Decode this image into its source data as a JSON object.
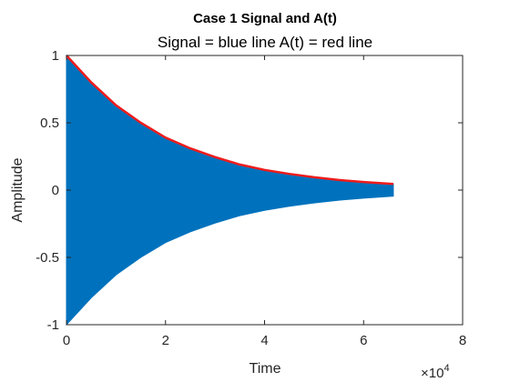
{
  "chart_data": {
    "type": "area",
    "title": "Case 1 Signal and A(t)",
    "subtitle": "Signal = blue line A(t) = red line",
    "xlabel": "Time",
    "ylabel": "Amplitude",
    "x_multiplier_label": "×10",
    "x_multiplier_exponent": "4",
    "xlim": [
      0,
      80000
    ],
    "ylim": [
      -1,
      1
    ],
    "x_ticks": [
      0,
      20000,
      40000,
      60000,
      80000
    ],
    "x_tick_labels": [
      "0",
      "2",
      "4",
      "6",
      "8"
    ],
    "y_ticks": [
      -1,
      -0.5,
      0,
      0.5,
      1
    ],
    "y_tick_labels": [
      "-1",
      "-0.5",
      "0",
      "0.5",
      "1"
    ],
    "grid": false,
    "series": [
      {
        "name": "Signal",
        "color": "#0072BD",
        "kind": "oscillating signal filling envelope ±A(t)",
        "x_end": 66000,
        "x": [
          0,
          5000,
          10000,
          15000,
          20000,
          25000,
          30000,
          35000,
          40000,
          45000,
          50000,
          55000,
          60000,
          66000
        ],
        "upper": [
          1,
          0.8,
          0.63,
          0.5,
          0.39,
          0.31,
          0.245,
          0.19,
          0.15,
          0.12,
          0.095,
          0.075,
          0.06,
          0.045
        ],
        "lower": [
          -1,
          -0.8,
          -0.63,
          -0.5,
          -0.39,
          -0.31,
          -0.245,
          -0.19,
          -0.15,
          -0.12,
          -0.095,
          -0.075,
          -0.06,
          -0.045
        ]
      },
      {
        "name": "A(t)",
        "color": "#EE1C1C",
        "kind": "line",
        "x": [
          0,
          5000,
          10000,
          15000,
          20000,
          25000,
          30000,
          35000,
          40000,
          45000,
          50000,
          55000,
          60000,
          66000
        ],
        "y": [
          1,
          0.8,
          0.63,
          0.5,
          0.39,
          0.31,
          0.245,
          0.19,
          0.15,
          0.12,
          0.095,
          0.075,
          0.06,
          0.045
        ]
      }
    ]
  }
}
